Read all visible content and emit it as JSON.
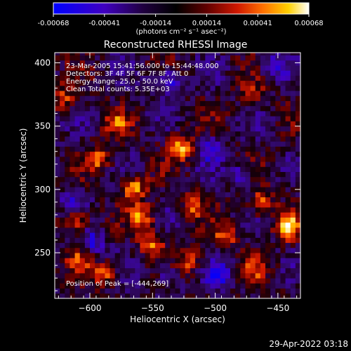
{
  "colorbar": {
    "tick_labels": [
      "-0.00068",
      "-0.00041",
      "-0.00014",
      "0.00014",
      "0.00041",
      "0.00068"
    ],
    "unit_label": "(photons cm⁻² s⁻¹ asec⁻²)",
    "colors": [
      "#0000ff",
      "#5a00b0",
      "#1a0020",
      "#000000",
      "#600000",
      "#d01800",
      "#ff7000",
      "#ffd000",
      "#ffffff"
    ]
  },
  "chart_data": {
    "type": "heatmap",
    "title": "Reconstructed RHESSI Image",
    "xlabel": "Heliocentric X (arcsec)",
    "ylabel": "Heliocentric Y (arcsec)",
    "xlim": [
      -628,
      -432
    ],
    "ylim": [
      214,
      408
    ],
    "x_ticks": [
      -600,
      -550,
      -500,
      -450
    ],
    "y_ticks": [
      250,
      300,
      350,
      400
    ],
    "annotations": [
      "23-Mar-2005 15:41:56.000 to 15:44:48.000",
      "Detectors: 3F 4F 5F 6F 7F 8F, Att 0",
      "Energy Range: 25.0 - 50.0 keV",
      "Clean     Total counts: 5.35E+03"
    ],
    "peak_label": "Position of Peak = [-444,269]",
    "peak": [
      -444,
      269
    ],
    "bright_sources": [
      {
        "x": -530,
        "y": 332,
        "value": 0.0006
      },
      {
        "x": -567,
        "y": 300,
        "value": 0.00058
      },
      {
        "x": -613,
        "y": 275,
        "value": 0.00055
      },
      {
        "x": -560,
        "y": 276,
        "value": 0.00052
      },
      {
        "x": -595,
        "y": 322,
        "value": 0.00045
      },
      {
        "x": -444,
        "y": 269,
        "value": 0.00068
      },
      {
        "x": -465,
        "y": 287,
        "value": 0.0005
      },
      {
        "x": -493,
        "y": 262,
        "value": 0.0004
      },
      {
        "x": -590,
        "y": 232,
        "value": 0.00045
      },
      {
        "x": -522,
        "y": 242,
        "value": 0.00038
      },
      {
        "x": -520,
        "y": 286,
        "value": 0.0004
      },
      {
        "x": -580,
        "y": 350,
        "value": 0.00038
      },
      {
        "x": -622,
        "y": 370,
        "value": 0.00035
      },
      {
        "x": -473,
        "y": 372,
        "value": 0.00036
      },
      {
        "x": -610,
        "y": 245,
        "value": 0.00032
      },
      {
        "x": -552,
        "y": 255,
        "value": 0.00045
      },
      {
        "x": -470,
        "y": 235,
        "value": 0.0003
      }
    ],
    "dark_regions": [
      {
        "x": -540,
        "y": 384,
        "value": -0.0005
      },
      {
        "x": -455,
        "y": 396,
        "value": -0.00045
      },
      {
        "x": -500,
        "y": 230,
        "value": -0.0005
      },
      {
        "x": -600,
        "y": 256,
        "value": -0.0004
      },
      {
        "x": -615,
        "y": 290,
        "value": -0.00035
      },
      {
        "x": -505,
        "y": 330,
        "value": -0.0004
      },
      {
        "x": -480,
        "y": 310,
        "value": -0.00035
      },
      {
        "x": -540,
        "y": 230,
        "value": -0.0003
      }
    ]
  },
  "timestamp": "29-Apr-2022 03:18"
}
